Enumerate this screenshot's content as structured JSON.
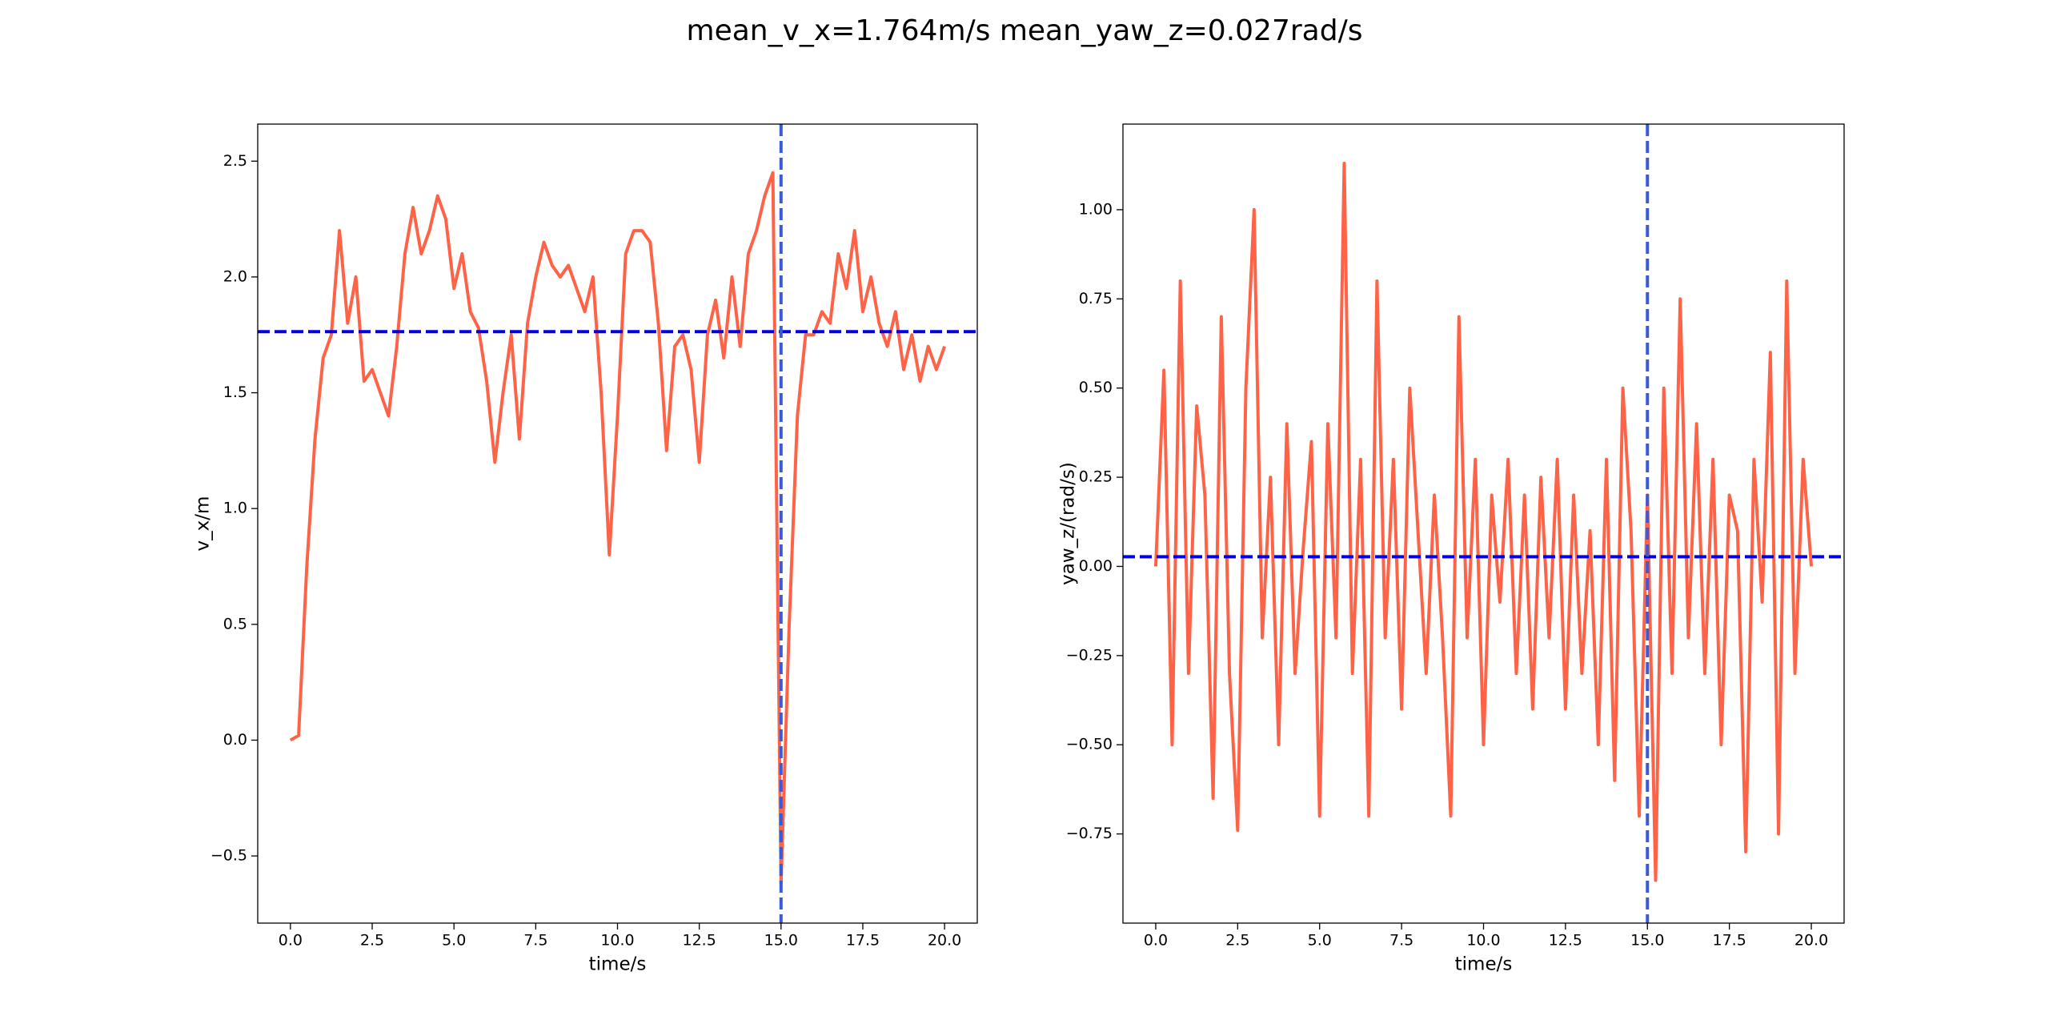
{
  "title": "mean_v_x=1.764m/s  mean_yaw_z=0.027rad/s",
  "chart_data": [
    {
      "type": "line",
      "xlabel": "time/s",
      "ylabel": "v_x/m",
      "color": "#ff6347",
      "x": [
        0,
        0.25,
        0.5,
        0.75,
        1,
        1.25,
        1.5,
        1.75,
        2,
        2.25,
        2.5,
        2.75,
        3,
        3.25,
        3.5,
        3.75,
        4,
        4.25,
        4.5,
        4.75,
        5,
        5.25,
        5.5,
        5.75,
        6,
        6.25,
        6.5,
        6.75,
        7,
        7.25,
        7.5,
        7.75,
        8,
        8.25,
        8.5,
        8.75,
        9,
        9.25,
        9.5,
        9.75,
        10,
        10.25,
        10.5,
        10.75,
        11,
        11.25,
        11.5,
        11.75,
        12,
        12.25,
        12.5,
        12.75,
        13,
        13.25,
        13.5,
        13.75,
        14,
        14.25,
        14.5,
        14.75,
        15,
        15.25,
        15.5,
        15.75,
        16,
        16.25,
        16.5,
        16.75,
        17,
        17.25,
        17.5,
        17.75,
        18,
        18.25,
        18.5,
        18.75,
        19,
        19.25,
        19.5,
        19.75,
        20
      ],
      "values": [
        0.0,
        0.02,
        0.75,
        1.3,
        1.65,
        1.75,
        2.2,
        1.8,
        2.0,
        1.55,
        1.6,
        1.5,
        1.4,
        1.7,
        2.1,
        2.3,
        2.1,
        2.2,
        2.35,
        2.25,
        1.95,
        2.1,
        1.85,
        1.78,
        1.55,
        1.2,
        1.5,
        1.75,
        1.3,
        1.8,
        2.0,
        2.15,
        2.05,
        2.0,
        2.05,
        1.95,
        1.85,
        2.0,
        1.5,
        0.8,
        1.4,
        2.1,
        2.2,
        2.2,
        2.15,
        1.8,
        1.25,
        1.7,
        1.75,
        1.6,
        1.2,
        1.75,
        1.9,
        1.65,
        2.0,
        1.7,
        2.1,
        2.2,
        2.35,
        2.45,
        -0.62,
        0.5,
        1.4,
        1.75,
        1.75,
        1.85,
        1.8,
        2.1,
        1.95,
        2.2,
        1.85,
        2.0,
        1.8,
        1.7,
        1.85,
        1.6,
        1.75,
        1.55,
        1.7,
        1.6,
        1.7
      ],
      "hlines": [
        {
          "value": 1.764,
          "color": "#0000ee"
        }
      ],
      "vlines": [
        {
          "value": 15.0,
          "color": "#3a5bd9"
        }
      ],
      "xlim": [
        -1.0,
        21.0
      ],
      "ylim": [
        -0.79,
        2.66
      ],
      "xticks": [
        {
          "value": 0,
          "label": "0.0"
        },
        2.5,
        {
          "value": 5,
          "label": "5.0"
        },
        7.5,
        {
          "value": 10,
          "label": "10.0"
        },
        12.5,
        {
          "value": 15,
          "label": "15.0"
        },
        17.5,
        {
          "value": 20,
          "label": "20.0"
        }
      ],
      "yticks": [
        {
          "value": -0.5,
          "label": "−0.5"
        },
        {
          "value": 0,
          "label": "0.0"
        },
        0.5,
        {
          "value": 1,
          "label": "1.0"
        },
        1.5,
        {
          "value": 2,
          "label": "2.0"
        },
        2.5
      ]
    },
    {
      "type": "line",
      "xlabel": "time/s",
      "ylabel": "yaw_z/(rad/s)",
      "color": "#ff6347",
      "x": [
        0,
        0.25,
        0.5,
        0.75,
        1,
        1.25,
        1.5,
        1.75,
        2,
        2.25,
        2.5,
        2.75,
        3,
        3.25,
        3.5,
        3.75,
        4,
        4.25,
        4.5,
        4.75,
        5,
        5.25,
        5.5,
        5.75,
        6,
        6.25,
        6.5,
        6.75,
        7,
        7.25,
        7.5,
        7.75,
        8,
        8.25,
        8.5,
        8.75,
        9,
        9.25,
        9.5,
        9.75,
        10,
        10.25,
        10.5,
        10.75,
        11,
        11.25,
        11.5,
        11.75,
        12,
        12.25,
        12.5,
        12.75,
        13,
        13.25,
        13.5,
        13.75,
        14,
        14.25,
        14.5,
        14.75,
        15,
        15.25,
        15.5,
        15.75,
        16,
        16.25,
        16.5,
        16.75,
        17,
        17.25,
        17.5,
        17.75,
        18,
        18.25,
        18.5,
        18.75,
        19,
        19.25,
        19.5,
        19.75,
        20
      ],
      "values": [
        0.0,
        0.55,
        -0.5,
        0.8,
        -0.3,
        0.45,
        0.2,
        -0.65,
        0.7,
        -0.3,
        -0.74,
        0.5,
        1.0,
        -0.2,
        0.25,
        -0.5,
        0.4,
        -0.3,
        0.05,
        0.35,
        -0.7,
        0.4,
        -0.2,
        1.13,
        -0.3,
        0.3,
        -0.7,
        0.8,
        -0.2,
        0.3,
        -0.4,
        0.5,
        0.1,
        -0.3,
        0.2,
        -0.2,
        -0.7,
        0.7,
        -0.2,
        0.3,
        -0.5,
        0.2,
        -0.1,
        0.3,
        -0.3,
        0.2,
        -0.4,
        0.25,
        -0.2,
        0.3,
        -0.4,
        0.2,
        -0.3,
        0.1,
        -0.5,
        0.3,
        -0.6,
        0.5,
        0.1,
        -0.7,
        0.2,
        -0.88,
        0.5,
        -0.3,
        0.75,
        -0.2,
        0.4,
        -0.3,
        0.3,
        -0.5,
        0.2,
        0.1,
        -0.8,
        0.3,
        -0.1,
        0.6,
        -0.75,
        0.8,
        -0.3,
        0.3,
        0.0
      ],
      "hlines": [
        {
          "value": 0.027,
          "color": "#0000ee"
        }
      ],
      "vlines": [
        {
          "value": 15.0,
          "color": "#3a5bd9"
        }
      ],
      "xlim": [
        -1.0,
        21.0
      ],
      "ylim": [
        -1.0,
        1.24
      ],
      "xticks": [
        {
          "value": 0,
          "label": "0.0"
        },
        2.5,
        {
          "value": 5,
          "label": "5.0"
        },
        7.5,
        {
          "value": 10,
          "label": "10.0"
        },
        12.5,
        {
          "value": 15,
          "label": "15.0"
        },
        17.5,
        {
          "value": 20,
          "label": "20.0"
        }
      ],
      "yticks": [
        {
          "value": -0.75,
          "label": "−0.75"
        },
        {
          "value": -0.5,
          "label": "−0.50"
        },
        {
          "value": -0.25,
          "label": "−0.25"
        },
        {
          "value": 0,
          "label": "0.00"
        },
        0.25,
        {
          "value": 0.5,
          "label": "0.50"
        },
        0.75,
        {
          "value": 1,
          "label": "1.00"
        }
      ]
    }
  ]
}
